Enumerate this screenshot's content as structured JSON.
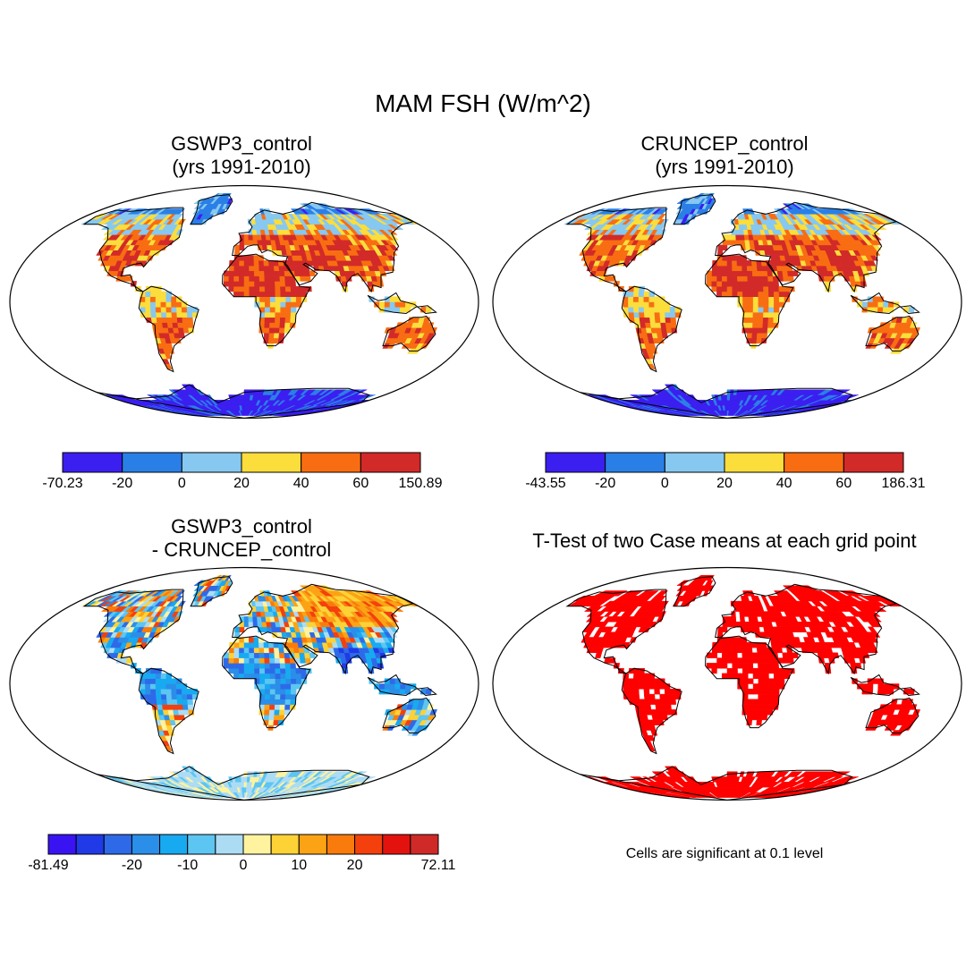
{
  "title": "MAM FSH (W/m^2)",
  "panels": [
    {
      "id": "gswp3",
      "title_lines": [
        "GSWP3_control",
        "(yrs 1991-2010)"
      ],
      "type": "field",
      "colors": [
        "#3b1ef0",
        "#2a7fe6",
        "#86c8f0",
        "#fbdd3c",
        "#f86d12",
        "#d22a28"
      ],
      "labels": [
        "-70.23",
        "-20",
        "0",
        "20",
        "40",
        "60",
        "150.89"
      ]
    },
    {
      "id": "cruncep",
      "title_lines": [
        "CRUNCEP_control",
        "(yrs 1991-2010)"
      ],
      "type": "field",
      "colors": [
        "#3b1ef0",
        "#2a7fe6",
        "#86c8f0",
        "#fbdd3c",
        "#f86d12",
        "#d22a28"
      ],
      "labels": [
        "-43.55",
        "-20",
        "0",
        "20",
        "40",
        "60",
        "186.31"
      ]
    },
    {
      "id": "diff",
      "title_lines": [
        "GSWP3_control",
        "- CRUNCEP_control"
      ],
      "type": "diff",
      "colors": [
        "#3a13f2",
        "#1f3ae6",
        "#2e6ae8",
        "#2b8ee8",
        "#18aaf0",
        "#5cc5f2",
        "#acdcf4",
        "#fff3a0",
        "#fdd236",
        "#fba314",
        "#f97b0c",
        "#f3400c",
        "#e3120e",
        "#cf2a28"
      ],
      "labels": [
        "-81.49",
        "-20",
        "-10",
        "0",
        "10",
        "20",
        "72.11"
      ]
    },
    {
      "id": "ttest",
      "title_lines": [
        "T-Test of two Case means at each grid point"
      ],
      "type": "sig",
      "colors": [
        "#ff0000"
      ],
      "labels": []
    }
  ],
  "note": "Cells are significant at 0.1 level"
}
